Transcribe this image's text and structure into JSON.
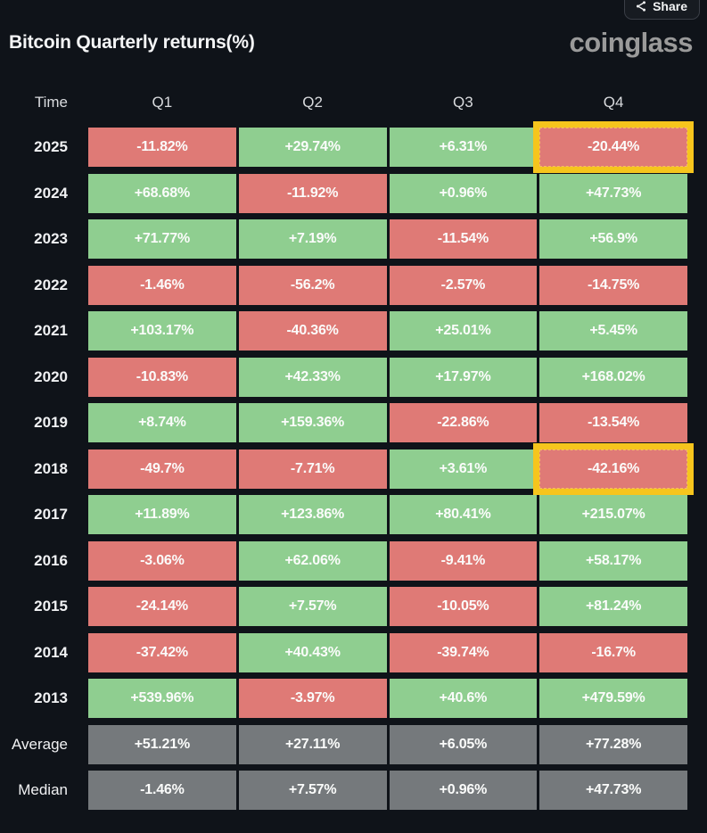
{
  "share": {
    "label": "Share"
  },
  "header": {
    "title": "Bitcoin Quarterly returns(%)",
    "logo": "coinglass"
  },
  "colors": {
    "positive": "#8fce90",
    "negative": "#df7a76",
    "summary": "#75797c",
    "highlight": "#f6c51d",
    "background": "#0f1319"
  },
  "chart_data": {
    "type": "table",
    "title": "Bitcoin Quarterly returns(%)",
    "columns": [
      "Time",
      "Q1",
      "Q2",
      "Q3",
      "Q4"
    ],
    "rows": [
      {
        "label": "2025",
        "type": "year",
        "values": [
          "-11.82%",
          "+29.74%",
          "+6.31%",
          "-20.44%"
        ],
        "highlight": 3
      },
      {
        "label": "2024",
        "type": "year",
        "values": [
          "+68.68%",
          "-11.92%",
          "+0.96%",
          "+47.73%"
        ],
        "highlight": null
      },
      {
        "label": "2023",
        "type": "year",
        "values": [
          "+71.77%",
          "+7.19%",
          "-11.54%",
          "+56.9%"
        ],
        "highlight": null
      },
      {
        "label": "2022",
        "type": "year",
        "values": [
          "-1.46%",
          "-56.2%",
          "-2.57%",
          "-14.75%"
        ],
        "highlight": null
      },
      {
        "label": "2021",
        "type": "year",
        "values": [
          "+103.17%",
          "-40.36%",
          "+25.01%",
          "+5.45%"
        ],
        "highlight": null
      },
      {
        "label": "2020",
        "type": "year",
        "values": [
          "-10.83%",
          "+42.33%",
          "+17.97%",
          "+168.02%"
        ],
        "highlight": null
      },
      {
        "label": "2019",
        "type": "year",
        "values": [
          "+8.74%",
          "+159.36%",
          "-22.86%",
          "-13.54%"
        ],
        "highlight": null
      },
      {
        "label": "2018",
        "type": "year",
        "values": [
          "-49.7%",
          "-7.71%",
          "+3.61%",
          "-42.16%"
        ],
        "highlight": 3
      },
      {
        "label": "2017",
        "type": "year",
        "values": [
          "+11.89%",
          "+123.86%",
          "+80.41%",
          "+215.07%"
        ],
        "highlight": null
      },
      {
        "label": "2016",
        "type": "year",
        "values": [
          "-3.06%",
          "+62.06%",
          "-9.41%",
          "+58.17%"
        ],
        "highlight": null
      },
      {
        "label": "2015",
        "type": "year",
        "values": [
          "-24.14%",
          "+7.57%",
          "-10.05%",
          "+81.24%"
        ],
        "highlight": null
      },
      {
        "label": "2014",
        "type": "year",
        "values": [
          "-37.42%",
          "+40.43%",
          "-39.74%",
          "-16.7%"
        ],
        "highlight": null
      },
      {
        "label": "2013",
        "type": "year",
        "values": [
          "+539.96%",
          "-3.97%",
          "+40.6%",
          "+479.59%"
        ],
        "highlight": null
      },
      {
        "label": "Average",
        "type": "summary",
        "values": [
          "+51.21%",
          "+27.11%",
          "+6.05%",
          "+77.28%"
        ],
        "highlight": null
      },
      {
        "label": "Median",
        "type": "summary",
        "values": [
          "-1.46%",
          "+7.57%",
          "+0.96%",
          "+47.73%"
        ],
        "highlight": null
      }
    ]
  }
}
